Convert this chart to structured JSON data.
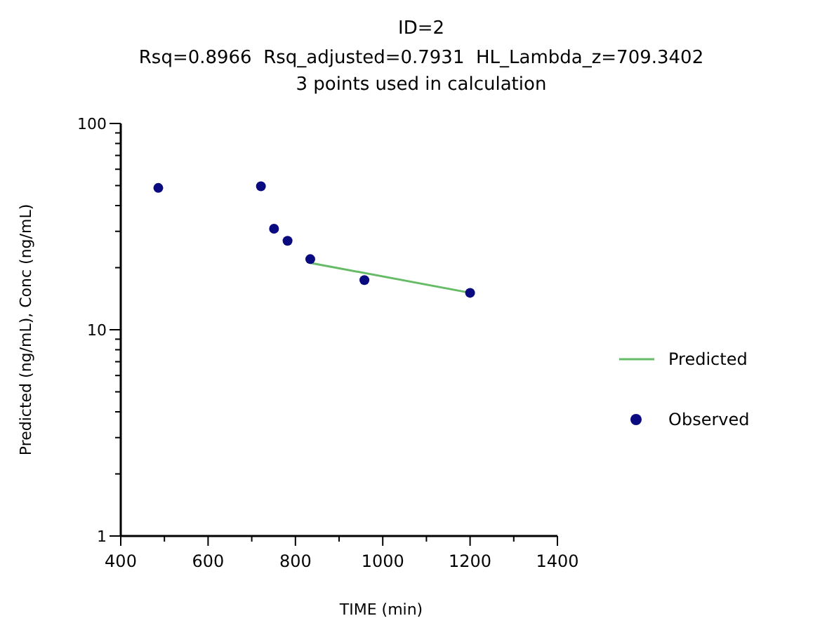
{
  "chart_data": {
    "type": "scatter",
    "title": "ID=2",
    "subtitle": "Rsq=0.8966  Rsq_adjusted=0.7931  HL_Lambda_z=709.3402\n3 points used in calculation",
    "xlabel": "TIME (min)",
    "ylabel": "Predicted (ng/mL), Conc (ng/mL)",
    "log": "y",
    "grid": false,
    "legend": "right",
    "xlim": [
      400,
      1400
    ],
    "ylim": [
      1,
      100
    ],
    "xticks": [
      400,
      {
        "value": 500,
        "label": null
      },
      600,
      {
        "value": 700,
        "label": null
      },
      800,
      {
        "value": 900,
        "label": null
      },
      1000,
      {
        "value": 1100,
        "label": null
      },
      1200,
      {
        "value": 1300,
        "label": null
      },
      1400
    ],
    "yticks": [
      1,
      {
        "value": 2,
        "label": null
      },
      {
        "value": 3,
        "label": null
      },
      {
        "value": 4,
        "label": null
      },
      {
        "value": 5,
        "label": null
      },
      {
        "value": 6,
        "label": null
      },
      {
        "value": 7,
        "label": null
      },
      {
        "value": 8,
        "label": null
      },
      {
        "value": 9,
        "label": null
      },
      10,
      {
        "value": 20,
        "label": null
      },
      {
        "value": 30,
        "label": null
      },
      {
        "value": 40,
        "label": null
      },
      {
        "value": 50,
        "label": null
      },
      {
        "value": 60,
        "label": null
      },
      {
        "value": 70,
        "label": null
      },
      {
        "value": 80,
        "label": null
      },
      {
        "value": 90,
        "label": null
      },
      100
    ],
    "series": [
      {
        "name": "Predicted",
        "type": "line",
        "color": "#66bb66",
        "marker": "none",
        "line_style": "solid",
        "x": [
          834,
          1200
        ],
        "values": [
          21.1,
          15.1
        ]
      },
      {
        "name": "Observed",
        "type": "scatter",
        "color": "#0a0a80",
        "marker": "circle",
        "x": [
          486,
          721,
          751,
          782,
          834,
          958,
          1200
        ],
        "values": [
          48.7,
          49.6,
          30.9,
          27.0,
          22.0,
          17.4,
          15.1
        ]
      }
    ]
  }
}
